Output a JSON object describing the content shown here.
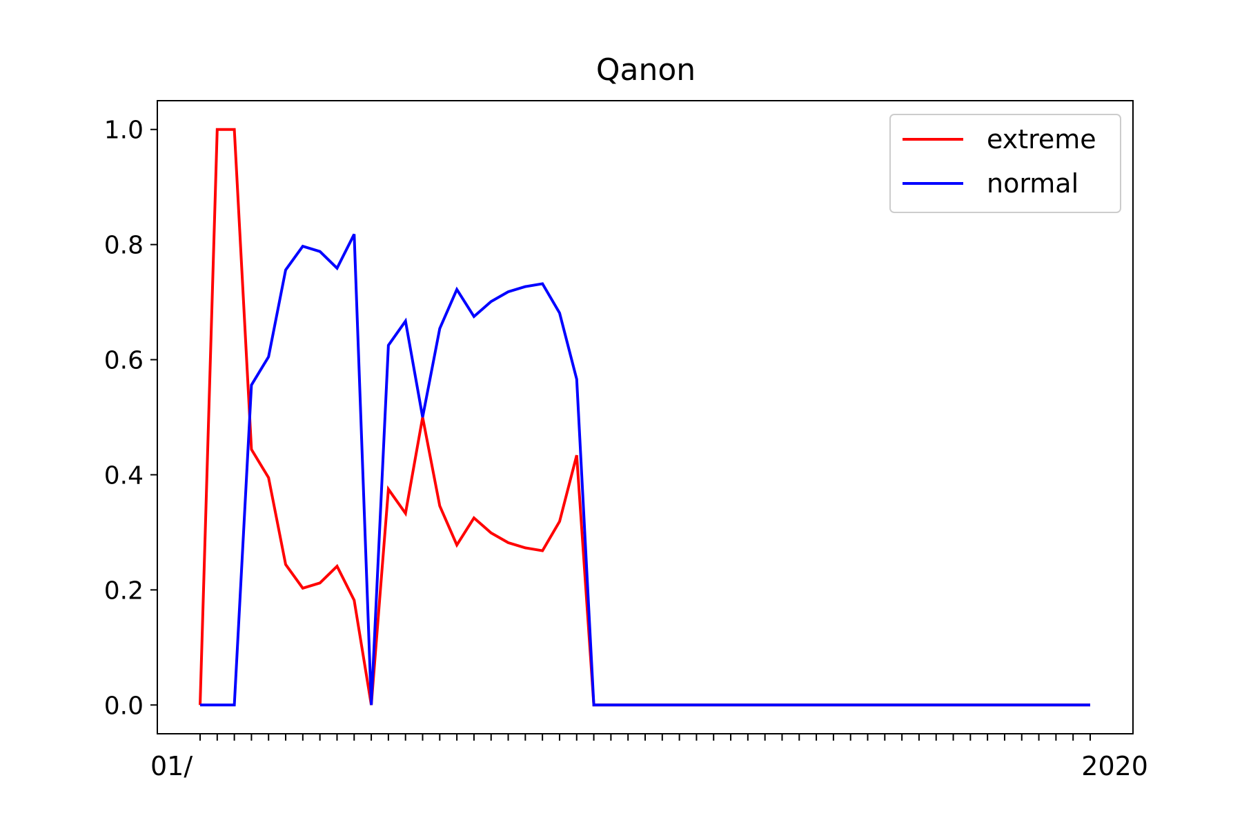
{
  "chart_data": {
    "type": "line",
    "title": "Qanon",
    "xlabel": "",
    "ylabel": "",
    "ylim": [
      -0.05,
      1.05
    ],
    "yticks": [
      0.0,
      0.2,
      0.4,
      0.6,
      0.8,
      1.0
    ],
    "ytick_labels": [
      "0.0",
      "0.2",
      "0.4",
      "0.6",
      "0.8",
      "1.0"
    ],
    "grid": false,
    "legend_position": "upper right",
    "x_tick_labels_legible": false,
    "x_tick_label_fragments": [
      "01/",
      "2020"
    ],
    "x_tick_label_fragments_note_legible": "",
    "n_points": 53,
    "series": [
      {
        "name": "extreme",
        "color": "#ff0000",
        "values": [
          0.0,
          1.0,
          1.0,
          0.444,
          0.395,
          0.244,
          0.203,
          0.212,
          0.241,
          0.182,
          0.0,
          0.375,
          0.333,
          0.5,
          0.346,
          0.278,
          0.325,
          0.299,
          0.282,
          0.273,
          0.268,
          0.319,
          0.434,
          0.0,
          0.0,
          0.0,
          0.0,
          0.0,
          0.0,
          0.0,
          0.0,
          0.0,
          0.0,
          0.0,
          0.0,
          0.0,
          0.0,
          0.0,
          0.0,
          0.0,
          0.0,
          0.0,
          0.0,
          0.0,
          0.0,
          0.0,
          0.0,
          0.0,
          0.0,
          0.0,
          0.0,
          0.0,
          0.0
        ]
      },
      {
        "name": "normal",
        "color": "#0000ff",
        "values": [
          0.0,
          0.0,
          0.0,
          0.556,
          0.605,
          0.756,
          0.797,
          0.788,
          0.759,
          0.818,
          0.0,
          0.625,
          0.667,
          0.5,
          0.654,
          0.722,
          0.675,
          0.701,
          0.718,
          0.727,
          0.732,
          0.681,
          0.566,
          0.0,
          0.0,
          0.0,
          0.0,
          0.0,
          0.0,
          0.0,
          0.0,
          0.0,
          0.0,
          0.0,
          0.0,
          0.0,
          0.0,
          0.0,
          0.0,
          0.0,
          0.0,
          0.0,
          0.0,
          0.0,
          0.0,
          0.0,
          0.0,
          0.0,
          0.0,
          0.0,
          0.0,
          0.0,
          0.0
        ]
      }
    ]
  }
}
